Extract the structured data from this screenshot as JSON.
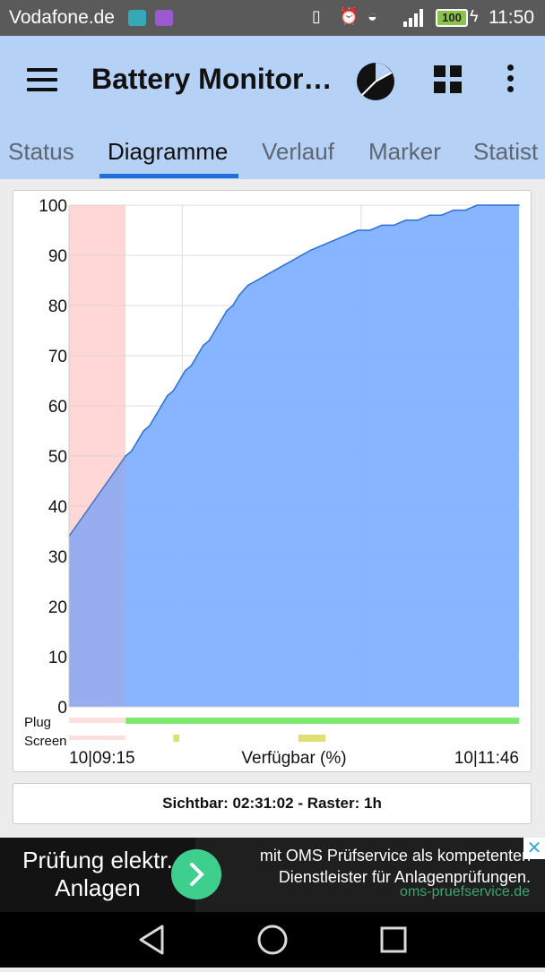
{
  "status_bar": {
    "carrier": "Vodafone.de",
    "battery_level": "100",
    "time": "11:50"
  },
  "app_bar": {
    "title": "Battery Monitor…"
  },
  "tabs": [
    {
      "label": "Status"
    },
    {
      "label": "Diagramme"
    },
    {
      "label": "Verlauf"
    },
    {
      "label": "Marker"
    },
    {
      "label": "Statist"
    }
  ],
  "active_tab": 1,
  "chart_data": {
    "type": "area",
    "ylim": [
      0,
      100
    ],
    "yticks": [
      0,
      10,
      20,
      30,
      40,
      50,
      60,
      70,
      80,
      90,
      100
    ],
    "xlabel": "Verfügbar (%)",
    "x_start_label": "10|09:15",
    "x_end_label": "10|11:46",
    "x_minutes_range": [
      0,
      151
    ],
    "series": [
      {
        "x": [
          0,
          19,
          21,
          23,
          25,
          27,
          29,
          31,
          33,
          35,
          37,
          39,
          41,
          43,
          45,
          47,
          49,
          51,
          53,
          55,
          57,
          60,
          63,
          66,
          69,
          72,
          75,
          78,
          81,
          85,
          89,
          93,
          97,
          101,
          105,
          109,
          113,
          117,
          121,
          125,
          129,
          133,
          137,
          141,
          145,
          151
        ],
        "values": [
          34,
          50,
          51,
          53,
          55,
          56,
          58,
          60,
          62,
          63,
          65,
          67,
          68,
          70,
          72,
          73,
          75,
          77,
          79,
          80,
          82,
          84,
          85,
          86,
          87,
          88,
          89,
          90,
          91,
          92,
          93,
          94,
          95,
          95,
          96,
          96,
          97,
          97,
          98,
          98,
          99,
          99,
          100,
          100,
          100,
          100
        ]
      }
    ],
    "highlight_region_minutes": [
      0,
      19
    ],
    "grid": true,
    "tracks": {
      "plug_label": "Plug",
      "screen_label": "Screen",
      "plug_off_until_minutes": 19,
      "screen_marks_minutes": [
        [
          35,
          37
        ],
        [
          77,
          86
        ]
      ]
    },
    "colors": {
      "area": "#82b1ff",
      "area_line": "#2c6fd6",
      "highlight": "#ffe3e3",
      "plug_on": "#7cea6e",
      "screen": "#dce270"
    }
  },
  "info": {
    "text": "Sichtbar: 02:31:02 - Raster: 1h"
  },
  "ad": {
    "left_text_line1": "Prüfung elektr.",
    "left_text_line2": "Anlagen",
    "body_line1": "mit OMS Prüfservice als kompetenten",
    "body_line2": "Dienstleister für Anlagenprüfungen.",
    "url": "oms-pruefservice.de"
  }
}
